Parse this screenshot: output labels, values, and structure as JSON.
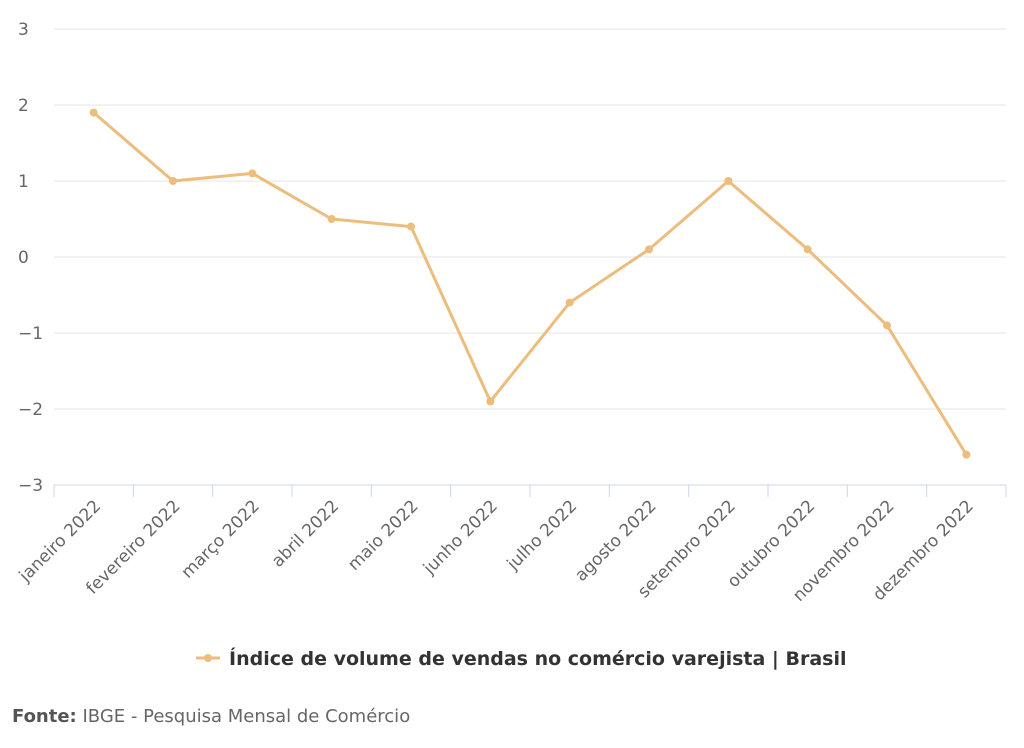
{
  "chart_data": {
    "type": "line",
    "title": "",
    "xlabel": "",
    "ylabel": "",
    "categories": [
      "janeiro 2022",
      "fevereiro 2022",
      "março 2022",
      "abril 2022",
      "maio 2022",
      "junho 2022",
      "julho 2022",
      "agosto 2022",
      "setembro 2022",
      "outubro 2022",
      "novembro 2022",
      "dezembro 2022"
    ],
    "series": [
      {
        "name": "Índice de volume de vendas no comércio varejista | Brasil",
        "color": "#ecbd7d",
        "values": [
          1.9,
          1.0,
          1.1,
          0.5,
          0.4,
          -1.9,
          -0.6,
          0.1,
          1.0,
          0.1,
          -0.9,
          -2.6
        ]
      }
    ],
    "ylim": [
      -3,
      3
    ],
    "yticks": [
      "3",
      "2",
      "1",
      "0",
      "−1",
      "−2",
      "−3"
    ],
    "grid": true,
    "legend_position": "bottom"
  },
  "source": {
    "label": "Fonte:",
    "text": "IBGE - Pesquisa Mensal de Comércio"
  }
}
